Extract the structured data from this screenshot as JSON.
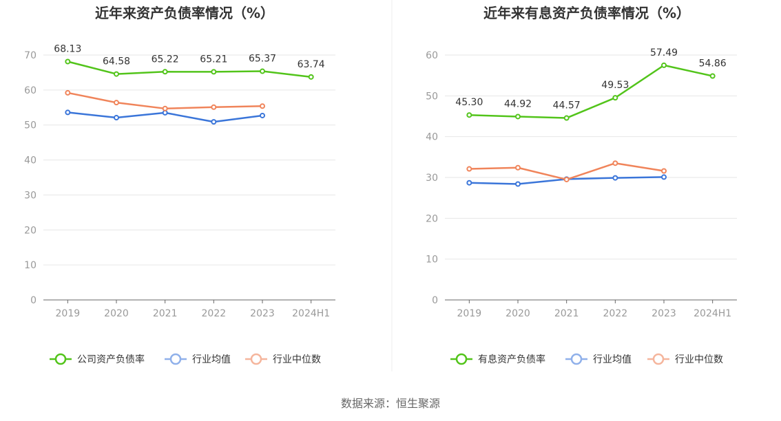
{
  "chart_data": [
    {
      "type": "line",
      "title": "近年来资产负债率情况（%）",
      "categories": [
        "2019",
        "2020",
        "2021",
        "2022",
        "2023",
        "2024H1"
      ],
      "ylim": [
        0,
        70
      ],
      "yticks": [
        0,
        10,
        20,
        30,
        40,
        50,
        60,
        70
      ],
      "grid": true,
      "legend_position": "bottom",
      "series": [
        {
          "name": "公司资产负债率",
          "color": "#52c41a",
          "values": [
            68.13,
            64.58,
            65.22,
            65.21,
            65.37,
            63.74
          ],
          "labels": [
            "68.13",
            "64.58",
            "65.22",
            "65.21",
            "65.37",
            "63.74"
          ]
        },
        {
          "name": "行业均值",
          "color": "#3a75d9",
          "values": [
            53.6,
            52.1,
            53.5,
            50.9,
            52.7,
            null
          ]
        },
        {
          "name": "行业中位数",
          "color": "#f0845a",
          "values": [
            59.2,
            56.4,
            54.7,
            55.1,
            55.4,
            null
          ]
        }
      ]
    },
    {
      "type": "line",
      "title": "近年来有息资产负债率情况（%）",
      "categories": [
        "2019",
        "2020",
        "2021",
        "2022",
        "2023",
        "2024H1"
      ],
      "ylim": [
        0,
        60
      ],
      "yticks": [
        0,
        10,
        20,
        30,
        40,
        50,
        60
      ],
      "grid": true,
      "legend_position": "bottom",
      "series": [
        {
          "name": "有息资产负债率",
          "color": "#52c41a",
          "values": [
            45.3,
            44.92,
            44.57,
            49.53,
            57.49,
            54.86
          ],
          "labels": [
            "45.30",
            "44.92",
            "44.57",
            "49.53",
            "57.49",
            "54.86"
          ]
        },
        {
          "name": "行业均值",
          "color": "#3a75d9",
          "values": [
            28.7,
            28.4,
            29.6,
            29.9,
            30.1,
            null
          ]
        },
        {
          "name": "行业中位数",
          "color": "#f0845a",
          "values": [
            32.1,
            32.4,
            29.5,
            33.5,
            31.6,
            null
          ]
        }
      ]
    }
  ],
  "legend_muted_colors": [
    "#52c41a",
    "#8fb0ea",
    "#f5b59c"
  ],
  "source": "数据来源：恒生聚源"
}
